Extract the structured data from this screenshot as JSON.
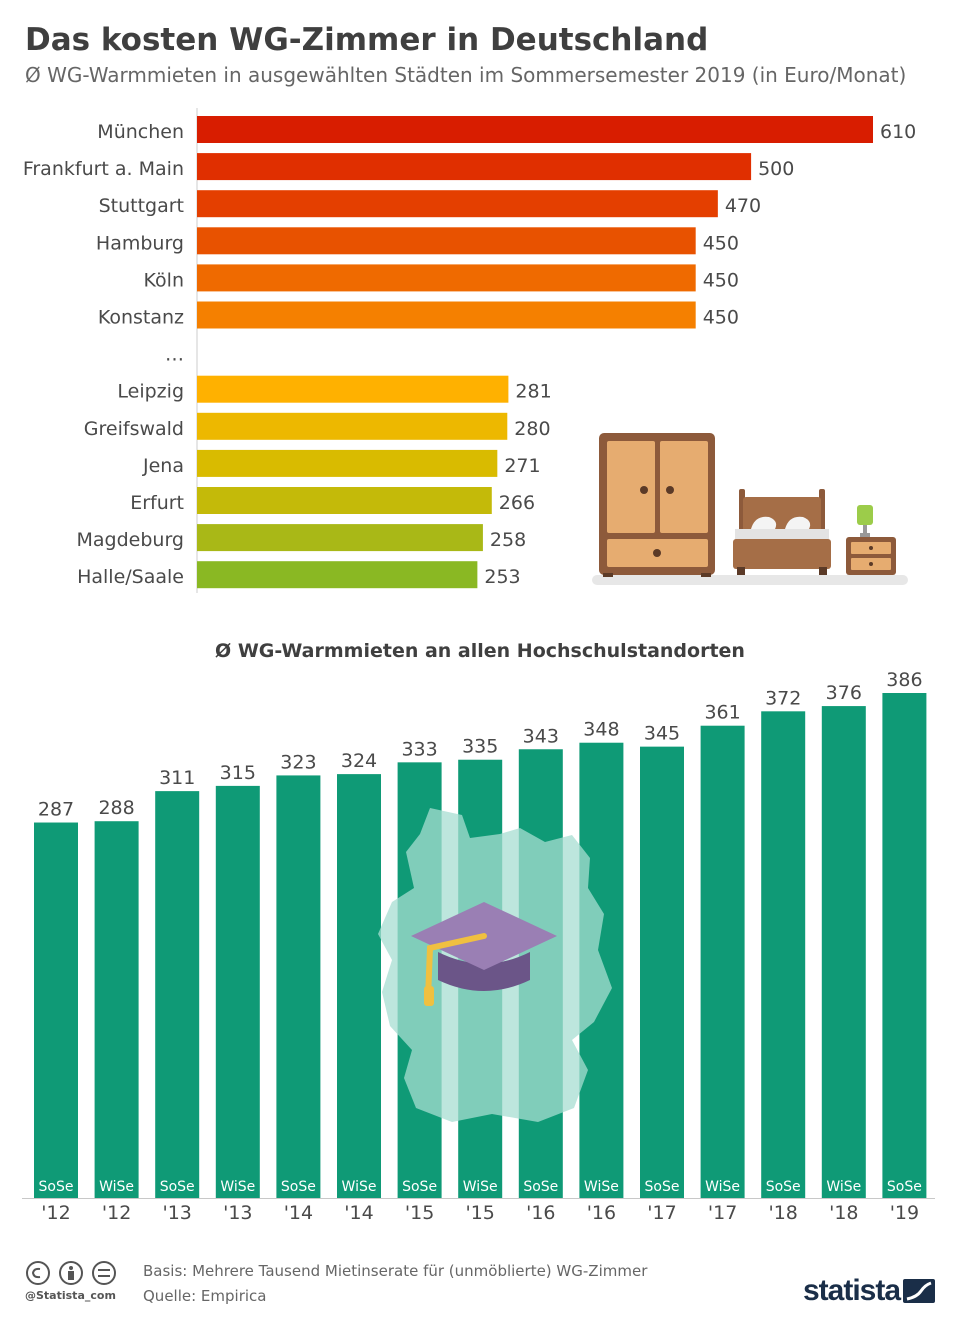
{
  "header": {
    "title": "Das kosten WG-Zimmer in Deutschland",
    "subtitle": "Ø WG-Warmmieten in ausgewählten Städten im Sommersemester 2019 (in Euro/Monat)"
  },
  "chart_data": [
    {
      "type": "bar",
      "orientation": "horizontal",
      "categories": [
        "München",
        "Frankfurt a. Main",
        "Stuttgart",
        "Hamburg",
        "Köln",
        "Konstanz",
        "…",
        "Leipzig",
        "Greifswald",
        "Jena",
        "Erfurt",
        "Magdeburg",
        "Halle/Saale"
      ],
      "values": [
        610,
        500,
        470,
        450,
        450,
        450,
        null,
        281,
        280,
        271,
        266,
        258,
        253
      ],
      "colors": [
        "#d81d00",
        "#e02f00",
        "#e43f00",
        "#e85200",
        "#ef6a00",
        "#f58000",
        null,
        "#ffb100",
        "#edb800",
        "#d9bb00",
        "#c4ba09",
        "#a9b817",
        "#8ab823"
      ],
      "xlim": [
        0,
        620
      ],
      "grid": false,
      "legend": "none"
    },
    {
      "type": "bar",
      "title": "Ø WG-Warmmieten an allen Hochschulstandorten",
      "categories": [
        "SoSe '12",
        "WiSe '12",
        "SoSe '13",
        "WiSe '13",
        "SoSe '14",
        "WiSe '14",
        "SoSe '15",
        "WiSe '15",
        "SoSe '16",
        "WiSe '16",
        "SoSe '17",
        "WiSe '17",
        "SoSe '18",
        "WiSe '18",
        "SoSe '19"
      ],
      "semesters": [
        "SoSe",
        "WiSe",
        "SoSe",
        "WiSe",
        "SoSe",
        "WiSe",
        "SoSe",
        "WiSe",
        "SoSe",
        "WiSe",
        "SoSe",
        "WiSe",
        "SoSe",
        "WiSe",
        "SoSe"
      ],
      "years": [
        "'12",
        "'12",
        "'13",
        "'13",
        "'14",
        "'14",
        "'15",
        "'15",
        "'16",
        "'16",
        "'17",
        "'17",
        "'18",
        "'18",
        "'19"
      ],
      "values": [
        287,
        288,
        311,
        315,
        323,
        324,
        333,
        335,
        343,
        348,
        345,
        361,
        372,
        376,
        386
      ],
      "color": "#0f9a76",
      "ylim": [
        0,
        386
      ],
      "grid": false,
      "legend": "none"
    }
  ],
  "icons": {
    "illustration": "bedroom-furniture-icon",
    "map": "germany-map-icon",
    "cap": "graduation-cap-icon",
    "license": "creative-commons-icon",
    "brand": "statista-logo-icon"
  },
  "footer": {
    "handle": "@Statista_com",
    "basis": "Basis: Mehrere Tausend Mietinserate für (unmöblierte) WG-Zimmer",
    "source": "Quelle: Empirica",
    "brand": "statista"
  }
}
